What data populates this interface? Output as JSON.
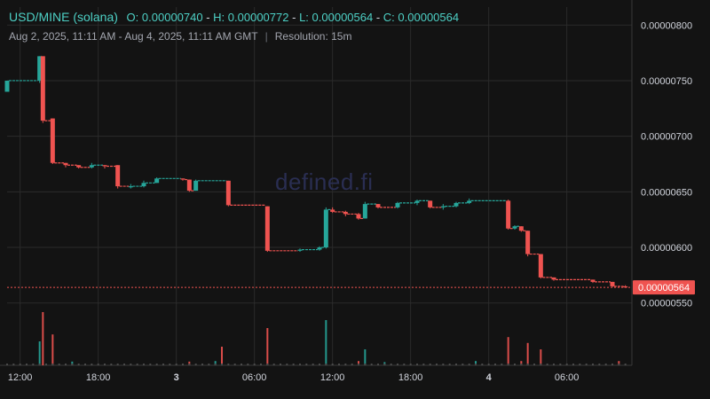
{
  "header": {
    "symbol": "USD/MINE (solana)",
    "open_label": "O:",
    "open": "0.00000740",
    "high_label": "H:",
    "high": "0.00000772",
    "low_label": "L:",
    "low": "0.00000564",
    "close_label": "C:",
    "close": "0.00000564",
    "range": "Aug 2, 2025, 11:11 AM - Aug 4, 2025, 11:11 AM GMT",
    "separator": "|",
    "resolution": "Resolution: 15m"
  },
  "watermark": "defined.fi",
  "colors": {
    "background": "#131313",
    "up": "#26a69a",
    "down": "#ef5350",
    "grid": "#2b2b2b",
    "price_line": "#ef5350",
    "price_label_bg": "#ef5350"
  },
  "chart_data": {
    "type": "candlestick",
    "y_axis": {
      "ticks": [
        "0.00000800",
        "0.00000750",
        "0.00000700",
        "0.00000650",
        "0.00000600",
        "0.00000550"
      ],
      "tick_values": [
        8e-06,
        7.5e-06,
        7e-06,
        6.5e-06,
        6e-06,
        5.5e-06
      ],
      "range": [
        5.45e-06,
        8.05e-06
      ],
      "position": "right"
    },
    "x_axis": {
      "labels": [
        "12:00",
        "18:00",
        "3",
        "06:00",
        "12:00",
        "18:00",
        "4",
        "06:00"
      ],
      "label_hours": [
        1,
        7,
        13,
        19,
        25,
        31,
        37,
        43
      ],
      "bold": [
        false,
        false,
        true,
        false,
        false,
        false,
        true,
        false
      ],
      "range_hours": [
        0,
        48
      ]
    },
    "current_price": {
      "value": 5.64e-06,
      "label": "0.00000564"
    },
    "candles": [
      {
        "t": 0.0,
        "o": 7.4e-06,
        "h": 7.5e-06,
        "l": 7.4e-06,
        "c": 7.5e-06
      },
      {
        "t": 2.5,
        "o": 7.5e-06,
        "h": 7.72e-06,
        "l": 7.48e-06,
        "c": 7.72e-06
      },
      {
        "t": 2.75,
        "o": 7.72e-06,
        "h": 7.72e-06,
        "l": 7.12e-06,
        "c": 7.14e-06
      },
      {
        "t": 3.5,
        "o": 7.16e-06,
        "h": 7.16e-06,
        "l": 6.75e-06,
        "c": 6.76e-06
      },
      {
        "t": 4.5,
        "o": 6.76e-06,
        "h": 6.76e-06,
        "l": 6.72e-06,
        "c": 6.74e-06
      },
      {
        "t": 5.5,
        "o": 6.74e-06,
        "h": 6.74e-06,
        "l": 6.71e-06,
        "c": 6.72e-06
      },
      {
        "t": 6.5,
        "o": 6.72e-06,
        "h": 6.76e-06,
        "l": 6.71e-06,
        "c": 6.74e-06
      },
      {
        "t": 7.5,
        "o": 6.74e-06,
        "h": 6.74e-06,
        "l": 6.71e-06,
        "c": 6.73e-06
      },
      {
        "t": 8.5,
        "o": 6.74e-06,
        "h": 6.74e-06,
        "l": 6.53e-06,
        "c": 6.55e-06
      },
      {
        "t": 9.5,
        "o": 6.55e-06,
        "h": 6.57e-06,
        "l": 6.53e-06,
        "c": 6.55e-06
      },
      {
        "t": 10.5,
        "o": 6.55e-06,
        "h": 6.6e-06,
        "l": 6.54e-06,
        "c": 6.58e-06
      },
      {
        "t": 11.5,
        "o": 6.58e-06,
        "h": 6.63e-06,
        "l": 6.58e-06,
        "c": 6.62e-06
      },
      {
        "t": 13.5,
        "o": 6.62e-06,
        "h": 6.62e-06,
        "l": 6.6e-06,
        "c": 6.61e-06
      },
      {
        "t": 14.0,
        "o": 6.61e-06,
        "h": 6.61e-06,
        "l": 6.5e-06,
        "c": 6.51e-06
      },
      {
        "t": 14.5,
        "o": 6.51e-06,
        "h": 6.61e-06,
        "l": 6.51e-06,
        "c": 6.6e-06
      },
      {
        "t": 17.0,
        "o": 6.6e-06,
        "h": 6.6e-06,
        "l": 6.37e-06,
        "c": 6.38e-06
      },
      {
        "t": 20.0,
        "o": 6.37e-06,
        "h": 6.37e-06,
        "l": 5.96e-06,
        "c": 5.97e-06
      },
      {
        "t": 22.5,
        "o": 5.97e-06,
        "h": 5.99e-06,
        "l": 5.96e-06,
        "c": 5.98e-06
      },
      {
        "t": 24.0,
        "o": 5.98e-06,
        "h": 6.01e-06,
        "l": 5.97e-06,
        "c": 6e-06
      },
      {
        "t": 24.5,
        "o": 6e-06,
        "h": 6.36e-06,
        "l": 5.99e-06,
        "c": 6.34e-06
      },
      {
        "t": 25.0,
        "o": 6.34e-06,
        "h": 6.36e-06,
        "l": 6.31e-06,
        "c": 6.32e-06
      },
      {
        "t": 26.0,
        "o": 6.32e-06,
        "h": 6.33e-06,
        "l": 6.28e-06,
        "c": 6.3e-06
      },
      {
        "t": 27.0,
        "o": 6.3e-06,
        "h": 6.31e-06,
        "l": 6.25e-06,
        "c": 6.26e-06
      },
      {
        "t": 27.5,
        "o": 6.26e-06,
        "h": 6.41e-06,
        "l": 6.26e-06,
        "c": 6.39e-06
      },
      {
        "t": 28.5,
        "o": 6.39e-06,
        "h": 6.39e-06,
        "l": 6.35e-06,
        "c": 6.36e-06
      },
      {
        "t": 30.0,
        "o": 6.36e-06,
        "h": 6.41e-06,
        "l": 6.35e-06,
        "c": 6.4e-06
      },
      {
        "t": 31.5,
        "o": 6.4e-06,
        "h": 6.43e-06,
        "l": 6.38e-06,
        "c": 6.42e-06
      },
      {
        "t": 32.5,
        "o": 6.42e-06,
        "h": 6.42e-06,
        "l": 6.35e-06,
        "c": 6.36e-06
      },
      {
        "t": 33.5,
        "o": 6.36e-06,
        "h": 6.39e-06,
        "l": 6.34e-06,
        "c": 6.37e-06
      },
      {
        "t": 34.5,
        "o": 6.37e-06,
        "h": 6.41e-06,
        "l": 6.36e-06,
        "c": 6.4e-06
      },
      {
        "t": 35.5,
        "o": 6.4e-06,
        "h": 6.44e-06,
        "l": 6.39e-06,
        "c": 6.42e-06
      },
      {
        "t": 38.5,
        "o": 6.42e-06,
        "h": 6.43e-06,
        "l": 6.16e-06,
        "c": 6.17e-06
      },
      {
        "t": 39.0,
        "o": 6.17e-06,
        "h": 6.2e-06,
        "l": 6.16e-06,
        "c": 6.19e-06
      },
      {
        "t": 39.5,
        "o": 6.19e-06,
        "h": 6.19e-06,
        "l": 6.14e-06,
        "c": 6.15e-06
      },
      {
        "t": 40.0,
        "o": 6.15e-06,
        "h": 6.15e-06,
        "l": 5.92e-06,
        "c": 5.94e-06
      },
      {
        "t": 41.0,
        "o": 5.94e-06,
        "h": 5.94e-06,
        "l": 5.72e-06,
        "c": 5.73e-06
      },
      {
        "t": 42.0,
        "o": 5.73e-06,
        "h": 5.73e-06,
        "l": 5.7e-06,
        "c": 5.71e-06
      },
      {
        "t": 45.0,
        "o": 5.71e-06,
        "h": 5.71e-06,
        "l": 5.68e-06,
        "c": 5.69e-06
      },
      {
        "t": 46.5,
        "o": 5.69e-06,
        "h": 5.69e-06,
        "l": 5.64e-06,
        "c": 5.65e-06
      },
      {
        "t": 47.5,
        "o": 5.65e-06,
        "h": 5.66e-06,
        "l": 5.64e-06,
        "c": 5.64e-06
      }
    ],
    "volume_bars": [
      {
        "t": 2.5,
        "v": 0.45,
        "up": true
      },
      {
        "t": 2.75,
        "v": 1.0,
        "up": false
      },
      {
        "t": 3.5,
        "v": 0.58,
        "up": false
      },
      {
        "t": 5.0,
        "v": 0.07,
        "up": true
      },
      {
        "t": 14.0,
        "v": 0.07,
        "up": false
      },
      {
        "t": 16.0,
        "v": 0.08,
        "up": true
      },
      {
        "t": 16.5,
        "v": 0.35,
        "up": false
      },
      {
        "t": 20.0,
        "v": 0.7,
        "up": false
      },
      {
        "t": 24.5,
        "v": 0.85,
        "up": true
      },
      {
        "t": 27.0,
        "v": 0.08,
        "up": false
      },
      {
        "t": 27.5,
        "v": 0.3,
        "up": true
      },
      {
        "t": 29.0,
        "v": 0.06,
        "up": true
      },
      {
        "t": 36.0,
        "v": 0.08,
        "up": true
      },
      {
        "t": 38.5,
        "v": 0.53,
        "up": false
      },
      {
        "t": 39.5,
        "v": 0.08,
        "up": false
      },
      {
        "t": 40.0,
        "v": 0.42,
        "up": false
      },
      {
        "t": 41.0,
        "v": 0.3,
        "up": false
      },
      {
        "t": 47.0,
        "v": 0.08,
        "up": false
      }
    ]
  }
}
